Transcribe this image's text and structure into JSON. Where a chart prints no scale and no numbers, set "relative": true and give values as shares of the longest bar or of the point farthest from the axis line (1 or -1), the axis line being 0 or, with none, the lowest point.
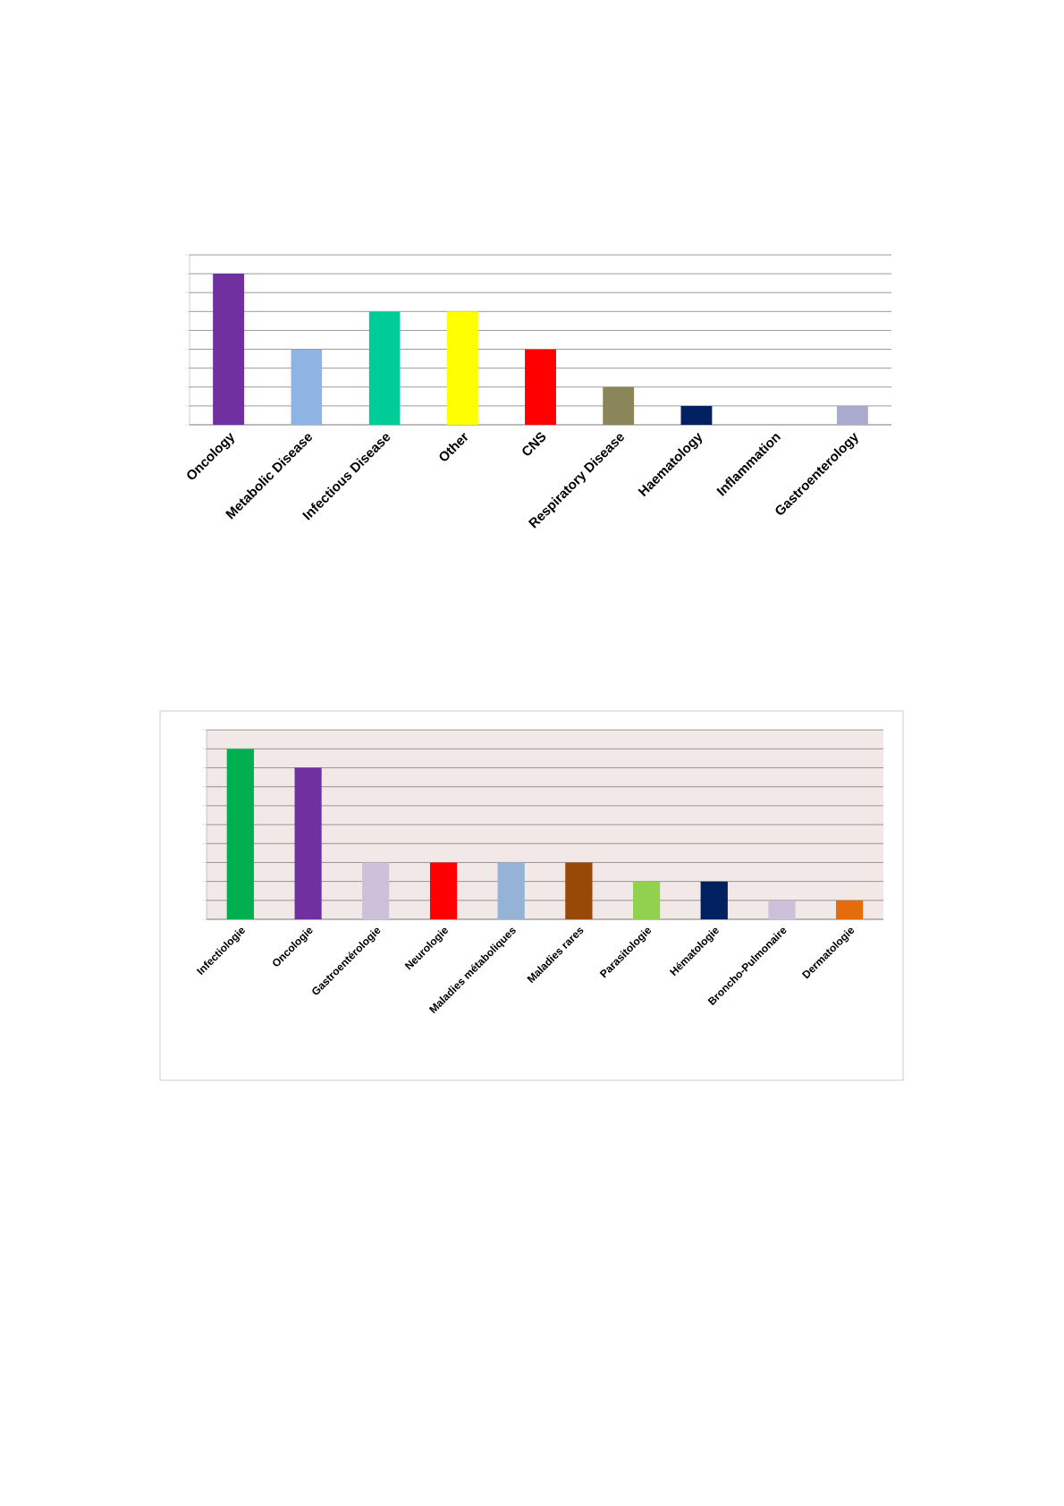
{
  "chart_data": [
    {
      "type": "bar",
      "relative": true,
      "grid": "y",
      "categories": [
        "Oncology",
        "Metabolic Disease",
        "Infectious Disease",
        "Other",
        "CNS",
        "Respiratory Disease",
        "Haematology",
        "Inflammation",
        "Gastroenterology"
      ],
      "values": [
        1,
        0.5,
        0.75,
        0.75,
        0.5,
        0.25,
        0.125,
        0,
        0.125
      ],
      "colors": [
        "#7030a0",
        "#8db4e2",
        "#00cc99",
        "#ffff00",
        "#ff0000",
        "#8b8659",
        "#002060",
        "#4f81bd",
        "#aaaacc"
      ]
    },
    {
      "type": "bar",
      "relative": true,
      "grid": "y",
      "categories": [
        "Infectiologie",
        "Oncologie",
        "Gastroentérologie",
        "Neurologie",
        "Maladies métaboliques",
        "Maladies rares",
        "Parasitologie",
        "Hématologie",
        "Broncho-Pulmonaire",
        "Dermatologie"
      ],
      "values": [
        1,
        0.889,
        0.333,
        0.333,
        0.333,
        0.333,
        0.222,
        0.222,
        0.111,
        0.111
      ],
      "colors": [
        "#00b050",
        "#7030a0",
        "#ccc0da",
        "#ff0000",
        "#95b3d7",
        "#984807",
        "#92d050",
        "#002060",
        "#ccc0da",
        "#e46c0a"
      ]
    }
  ]
}
